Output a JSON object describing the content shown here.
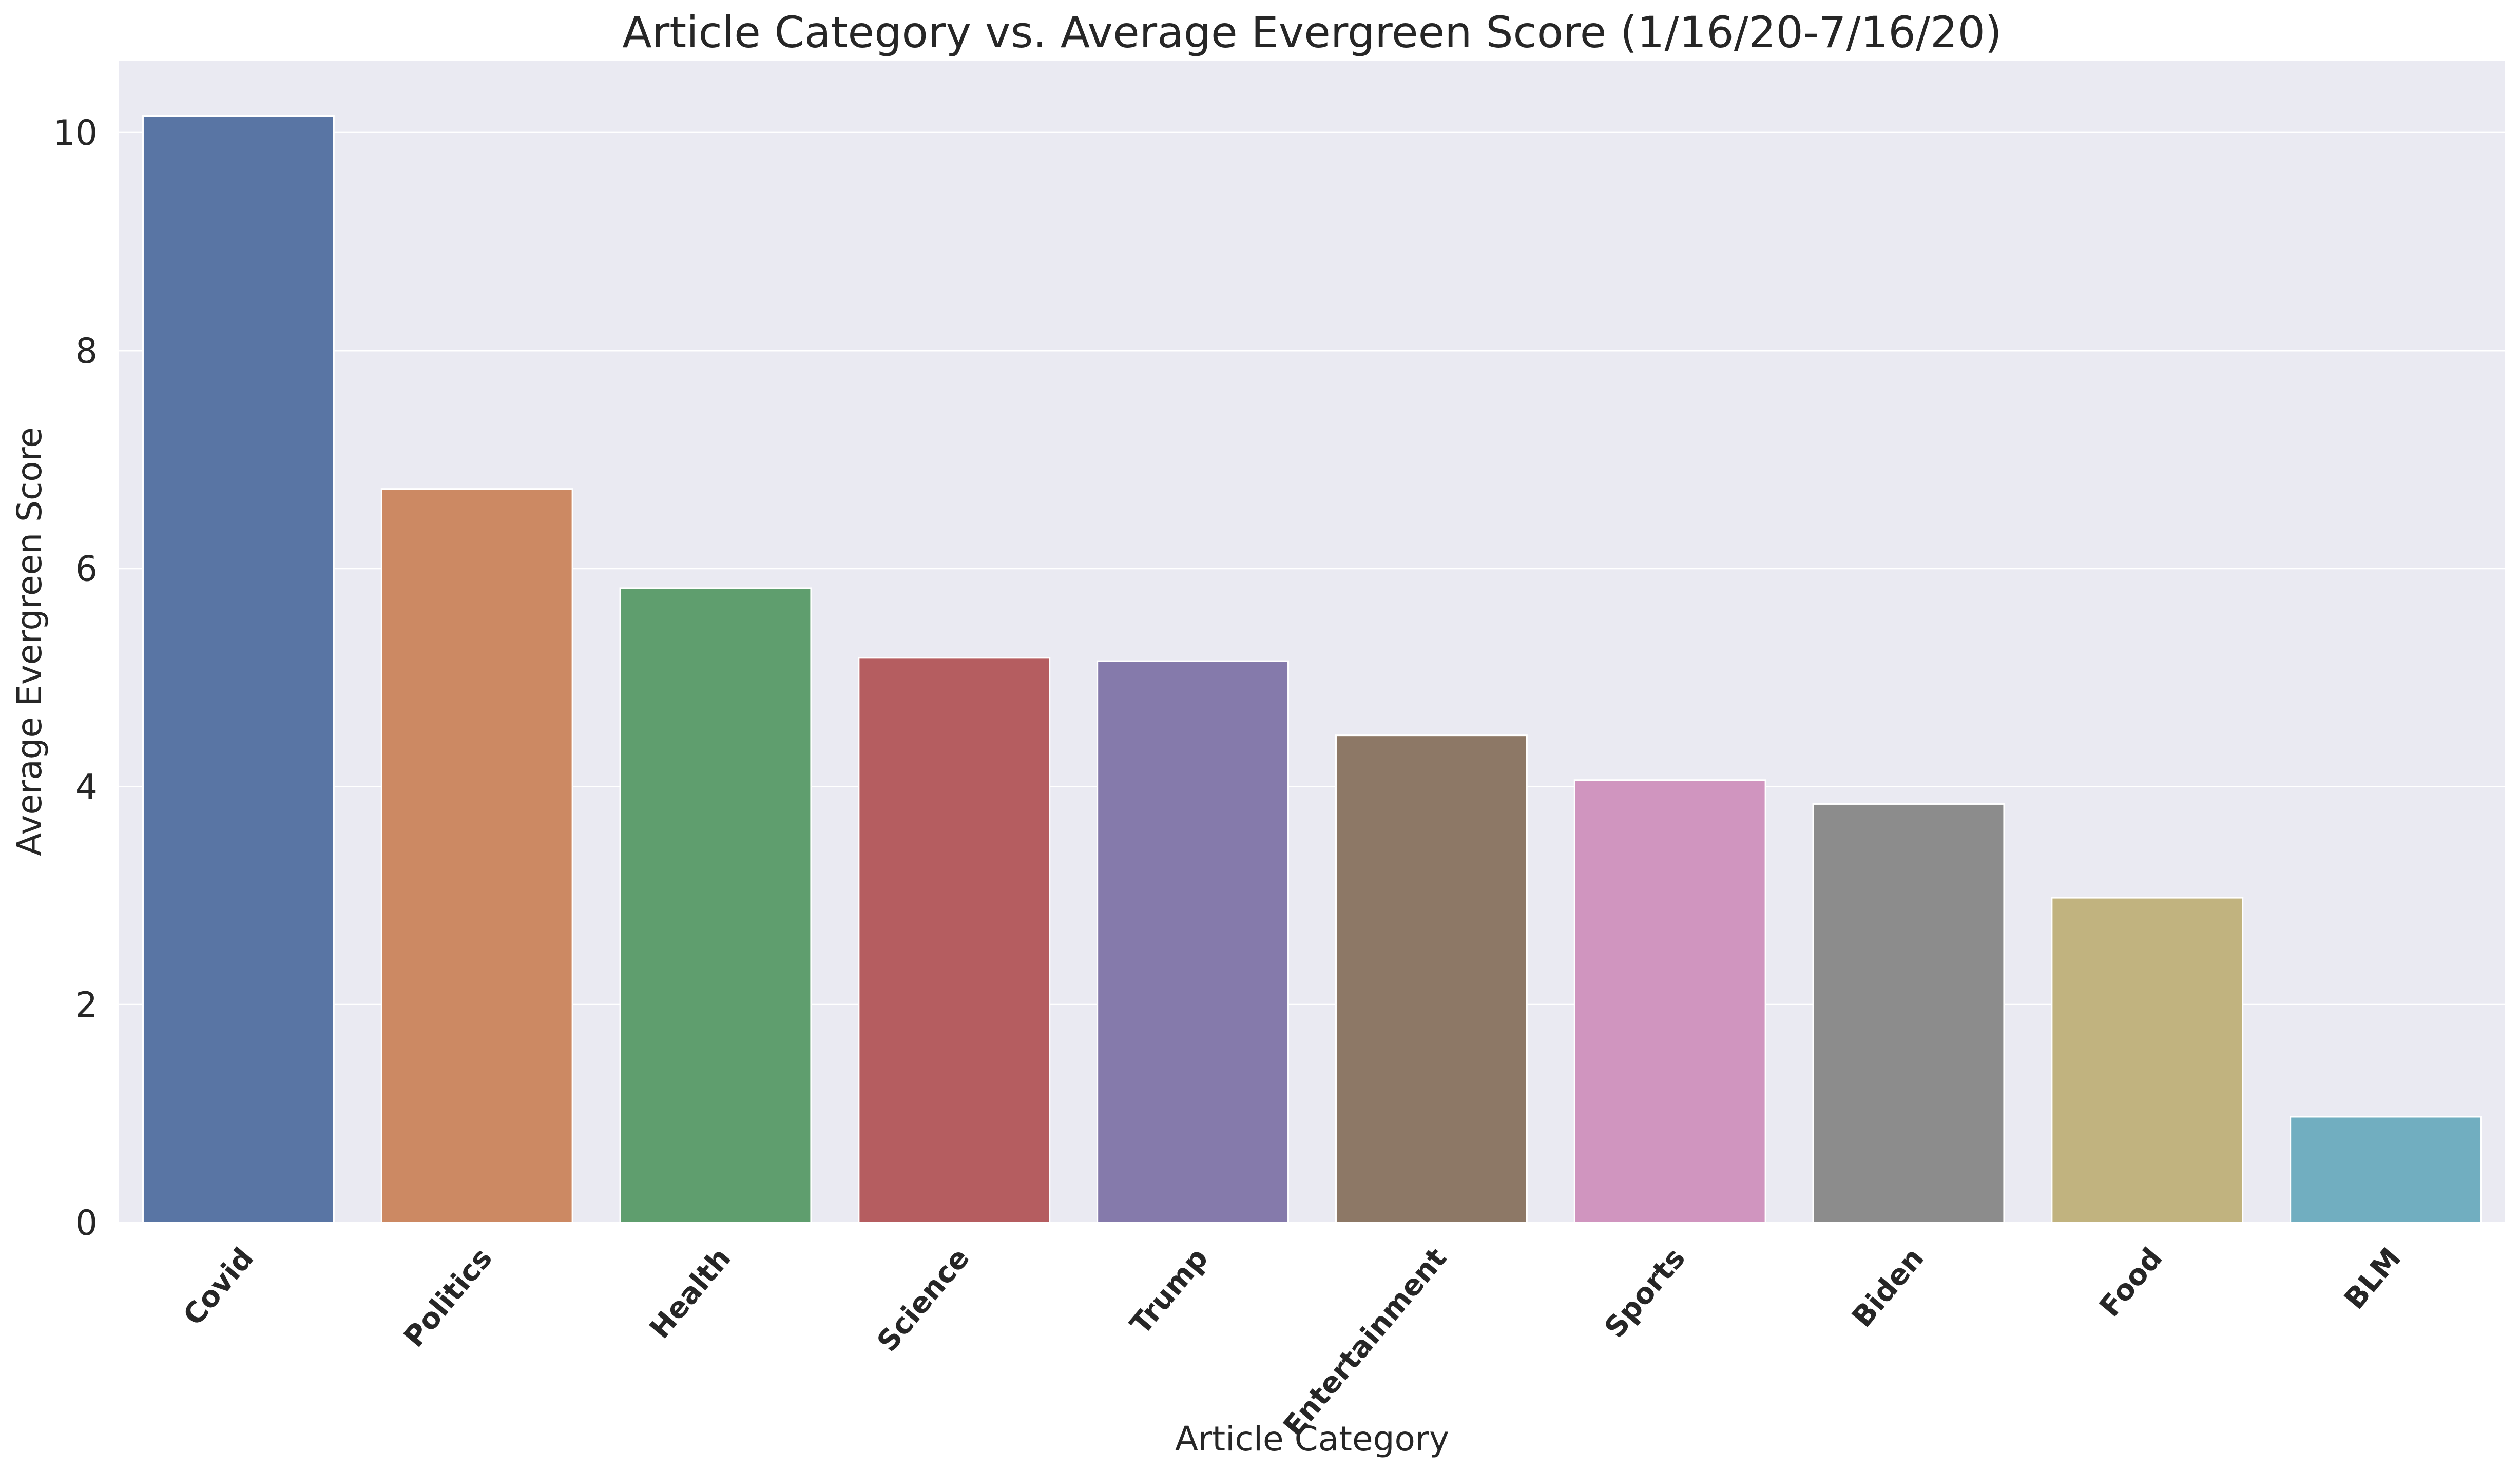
{
  "chart_data": {
    "type": "bar",
    "title": "Article Category vs. Average Evergreen Score (1/16/20-7/16/20)",
    "xlabel": "Article Category",
    "ylabel": "Average Evergreen Score",
    "categories": [
      "Covid",
      "Politics",
      "Health",
      "Science",
      "Trump",
      "Entertainment",
      "Sports",
      "Biden",
      "Food",
      "BLM"
    ],
    "values": [
      10.15,
      6.73,
      5.82,
      5.18,
      5.15,
      4.47,
      4.06,
      3.84,
      2.98,
      0.97
    ],
    "colors": [
      "#5975a4",
      "#cc8963",
      "#5f9e6e",
      "#b55d60",
      "#857aab",
      "#8d7866",
      "#d095bf",
      "#8c8c8c",
      "#c1b37f",
      "#71aec0"
    ],
    "ylim": [
      0,
      10.66
    ],
    "yticks": [
      0,
      2,
      4,
      6,
      8,
      10
    ],
    "grid": true,
    "legend": "none",
    "style": {
      "plot_background": "#eaeaf2",
      "grid_color": "#ffffff",
      "text_color": "#262626"
    }
  }
}
